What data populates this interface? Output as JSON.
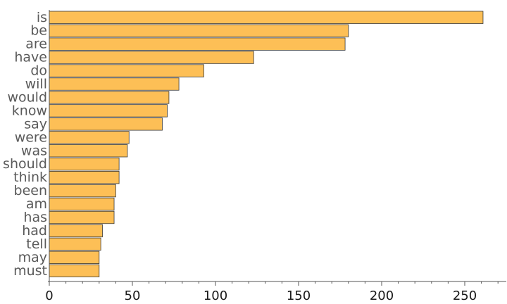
{
  "chart_data": {
    "type": "bar",
    "orientation": "horizontal",
    "title": "",
    "xlabel": "",
    "ylabel": "",
    "categories": [
      "is",
      "be",
      "are",
      "have",
      "do",
      "will",
      "would",
      "know",
      "say",
      "were",
      "was",
      "should",
      "think",
      "been",
      "am",
      "has",
      "had",
      "tell",
      "may",
      "must"
    ],
    "values": [
      261,
      180,
      178,
      123,
      93,
      78,
      72,
      71,
      68,
      48,
      47,
      42,
      42,
      40,
      39,
      39,
      32,
      31,
      30,
      30
    ],
    "xlim": [
      0,
      275
    ],
    "xticks": [
      0,
      50,
      100,
      150,
      200,
      250
    ],
    "xtick_labels": [
      "0",
      "50",
      "100",
      "150",
      "200",
      "250"
    ],
    "grid": false,
    "bar_color": "#FDBF56",
    "bar_edge_color": "#3a3a3a"
  }
}
